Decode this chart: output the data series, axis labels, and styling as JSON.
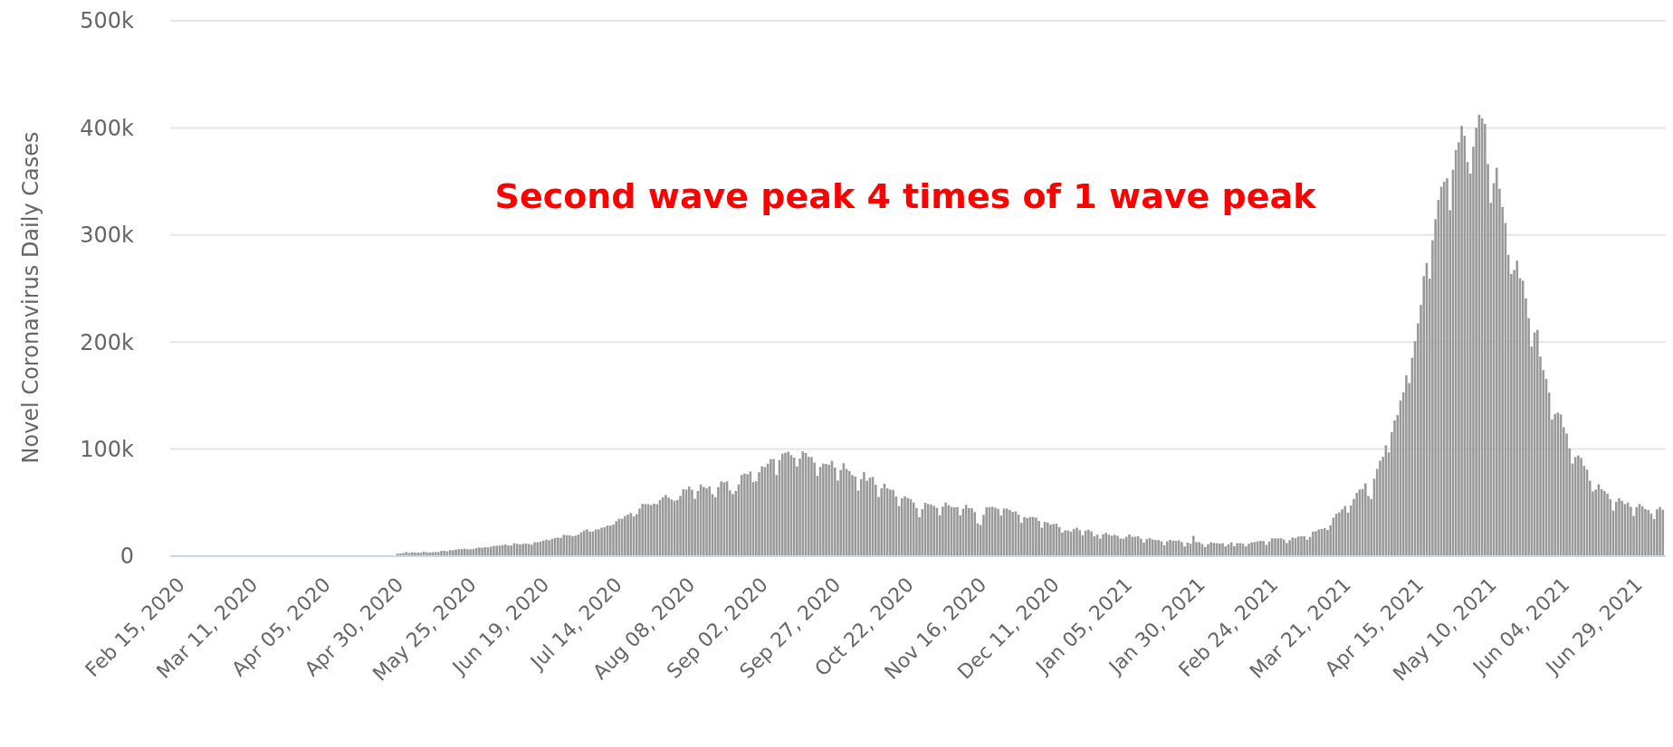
{
  "chart_data": {
    "type": "bar",
    "ylabel": "Novel Coronavirus Daily Cases",
    "annotations": [
      "Second wave peak 4 times of 1 wave peak"
    ],
    "xlim": [
      "2020-02-13",
      "2021-07-10"
    ],
    "xticks": [
      {
        "value": "2020-02-15",
        "label": "Feb 15, 2020"
      },
      {
        "value": "2020-03-11",
        "label": "Mar 11, 2020"
      },
      {
        "value": "2020-04-05",
        "label": "Apr 05, 2020"
      },
      {
        "value": "2020-04-30",
        "label": "Apr 30, 2020"
      },
      {
        "value": "2020-05-25",
        "label": "May 25, 2020"
      },
      {
        "value": "2020-06-19",
        "label": "Jun 19, 2020"
      },
      {
        "value": "2020-07-14",
        "label": "Jul 14, 2020"
      },
      {
        "value": "2020-08-08",
        "label": "Aug 08, 2020"
      },
      {
        "value": "2020-09-02",
        "label": "Sep 02, 2020"
      },
      {
        "value": "2020-09-27",
        "label": "Sep 27, 2020"
      },
      {
        "value": "2020-10-22",
        "label": "Oct 22, 2020"
      },
      {
        "value": "2020-11-16",
        "label": "Nov 16, 2020"
      },
      {
        "value": "2020-12-11",
        "label": "Dec 11, 2020"
      },
      {
        "value": "2021-01-05",
        "label": "Jan 05, 2021"
      },
      {
        "value": "2021-01-30",
        "label": "Jan 30, 2021"
      },
      {
        "value": "2021-02-24",
        "label": "Feb 24, 2021"
      },
      {
        "value": "2021-03-21",
        "label": "Mar 21, 2021"
      },
      {
        "value": "2021-04-15",
        "label": "Apr 15, 2021"
      },
      {
        "value": "2021-05-10",
        "label": "May 10, 2021"
      },
      {
        "value": "2021-06-04",
        "label": "Jun 04, 2021"
      },
      {
        "value": "2021-06-29",
        "label": "Jun 29, 2021"
      }
    ],
    "ylim": [
      0,
      500000
    ],
    "yticks": [
      {
        "value": 0,
        "label": "0"
      },
      {
        "value": 100000,
        "label": "100k"
      },
      {
        "value": 200000,
        "label": "200k"
      },
      {
        "value": 300000,
        "label": "300k"
      },
      {
        "value": 400000,
        "label": "400k"
      },
      {
        "value": 500000,
        "label": "500k"
      }
    ],
    "grid": "y",
    "color": "#999999",
    "x": [
      "2020-05-01",
      "2020-05-02",
      "2020-05-03",
      "2020-05-04",
      "2020-05-05",
      "2020-05-06",
      "2020-05-07",
      "2020-05-08",
      "2020-05-09",
      "2020-05-10",
      "2020-05-11",
      "2020-05-12",
      "2020-05-13",
      "2020-05-14",
      "2020-05-15",
      "2020-05-16",
      "2020-05-17",
      "2020-05-18",
      "2020-05-19",
      "2020-05-20",
      "2020-05-21",
      "2020-05-22",
      "2020-05-23",
      "2020-05-24",
      "2020-05-25",
      "2020-05-26",
      "2020-05-27",
      "2020-05-28",
      "2020-05-29",
      "2020-05-30",
      "2020-05-31",
      "2020-06-01",
      "2020-06-02",
      "2020-06-03",
      "2020-06-04",
      "2020-06-05",
      "2020-06-06",
      "2020-06-07",
      "2020-06-08",
      "2020-06-09",
      "2020-06-10",
      "2020-06-11",
      "2020-06-12",
      "2020-06-13",
      "2020-06-14",
      "2020-06-15",
      "2020-06-16",
      "2020-06-17",
      "2020-06-18",
      "2020-06-19",
      "2020-06-20",
      "2020-06-21",
      "2020-06-22",
      "2020-06-23",
      "2020-06-24",
      "2020-06-25",
      "2020-06-26",
      "2020-06-27",
      "2020-06-28",
      "2020-06-29",
      "2020-06-30",
      "2020-07-01",
      "2020-07-02",
      "2020-07-03",
      "2020-07-04",
      "2020-07-05",
      "2020-07-06",
      "2020-07-07",
      "2020-07-08",
      "2020-07-09",
      "2020-07-10",
      "2020-07-11",
      "2020-07-12",
      "2020-07-13",
      "2020-07-14",
      "2020-07-15",
      "2020-07-16",
      "2020-07-17",
      "2020-07-18",
      "2020-07-19",
      "2020-07-20",
      "2020-07-21",
      "2020-07-22",
      "2020-07-23",
      "2020-07-24",
      "2020-07-25",
      "2020-07-26",
      "2020-07-27",
      "2020-07-28",
      "2020-07-29",
      "2020-07-30",
      "2020-07-31",
      "2020-08-01",
      "2020-08-02",
      "2020-08-03",
      "2020-08-04",
      "2020-08-05",
      "2020-08-06",
      "2020-08-07",
      "2020-08-08",
      "2020-08-09",
      "2020-08-10",
      "2020-08-11",
      "2020-08-12",
      "2020-08-13",
      "2020-08-14",
      "2020-08-15",
      "2020-08-16",
      "2020-08-17",
      "2020-08-18",
      "2020-08-19",
      "2020-08-20",
      "2020-08-21",
      "2020-08-22",
      "2020-08-23",
      "2020-08-24",
      "2020-08-25",
      "2020-08-26",
      "2020-08-27",
      "2020-08-28",
      "2020-08-29",
      "2020-08-30",
      "2020-08-31",
      "2020-09-01",
      "2020-09-02",
      "2020-09-03",
      "2020-09-04",
      "2020-09-05",
      "2020-09-06",
      "2020-09-07",
      "2020-09-08",
      "2020-09-09",
      "2020-09-10",
      "2020-09-11",
      "2020-09-12",
      "2020-09-13",
      "2020-09-14",
      "2020-09-15",
      "2020-09-16",
      "2020-09-17",
      "2020-09-18",
      "2020-09-19",
      "2020-09-20",
      "2020-09-21",
      "2020-09-22",
      "2020-09-23",
      "2020-09-24",
      "2020-09-25",
      "2020-09-26",
      "2020-09-27",
      "2020-09-28",
      "2020-09-29",
      "2020-09-30",
      "2020-10-01",
      "2020-10-02",
      "2020-10-03",
      "2020-10-04",
      "2020-10-05",
      "2020-10-06",
      "2020-10-07",
      "2020-10-08",
      "2020-10-09",
      "2020-10-10",
      "2020-10-11",
      "2020-10-12",
      "2020-10-13",
      "2020-10-14",
      "2020-10-15",
      "2020-10-16",
      "2020-10-17",
      "2020-10-18",
      "2020-10-19",
      "2020-10-20",
      "2020-10-21",
      "2020-10-22",
      "2020-10-23",
      "2020-10-24",
      "2020-10-25",
      "2020-10-26",
      "2020-10-27",
      "2020-10-28",
      "2020-10-29",
      "2020-10-30",
      "2020-10-31",
      "2020-11-01",
      "2020-11-02",
      "2020-11-03",
      "2020-11-04",
      "2020-11-05",
      "2020-11-06",
      "2020-11-07",
      "2020-11-08",
      "2020-11-09",
      "2020-11-10",
      "2020-11-11",
      "2020-11-12",
      "2020-11-13",
      "2020-11-14",
      "2020-11-15",
      "2020-11-16",
      "2020-11-17",
      "2020-11-18",
      "2020-11-19",
      "2020-11-20",
      "2020-11-21",
      "2020-11-22",
      "2020-11-23",
      "2020-11-24",
      "2020-11-25",
      "2020-11-26",
      "2020-11-27",
      "2020-11-28",
      "2020-11-29",
      "2020-11-30",
      "2020-12-01",
      "2020-12-02",
      "2020-12-03",
      "2020-12-04",
      "2020-12-05",
      "2020-12-06",
      "2020-12-07",
      "2020-12-08",
      "2020-12-09",
      "2020-12-10",
      "2020-12-11",
      "2020-12-12",
      "2020-12-13",
      "2020-12-14",
      "2020-12-15",
      "2020-12-16",
      "2020-12-17",
      "2020-12-18",
      "2020-12-19",
      "2020-12-20",
      "2020-12-21",
      "2020-12-22",
      "2020-12-23",
      "2020-12-24",
      "2020-12-25",
      "2020-12-26",
      "2020-12-27",
      "2020-12-28",
      "2020-12-29",
      "2020-12-30",
      "2020-12-31",
      "2021-01-01",
      "2021-01-02",
      "2021-01-03",
      "2021-01-04",
      "2021-01-05",
      "2021-01-06",
      "2021-01-07",
      "2021-01-08",
      "2021-01-09",
      "2021-01-10",
      "2021-01-11",
      "2021-01-12",
      "2021-01-13",
      "2021-01-14",
      "2021-01-15",
      "2021-01-16",
      "2021-01-17",
      "2021-01-18",
      "2021-01-19",
      "2021-01-20",
      "2021-01-21",
      "2021-01-22",
      "2021-01-23",
      "2021-01-24",
      "2021-01-25",
      "2021-01-26",
      "2021-01-27",
      "2021-01-28",
      "2021-01-29",
      "2021-01-30",
      "2021-01-31",
      "2021-02-01",
      "2021-02-02",
      "2021-02-03",
      "2021-02-04",
      "2021-02-05",
      "2021-02-06",
      "2021-02-07",
      "2021-02-08",
      "2021-02-09",
      "2021-02-10",
      "2021-02-11",
      "2021-02-12",
      "2021-02-13",
      "2021-02-14",
      "2021-02-15",
      "2021-02-16",
      "2021-02-17",
      "2021-02-18",
      "2021-02-19",
      "2021-02-20",
      "2021-02-21",
      "2021-02-22",
      "2021-02-23",
      "2021-02-24",
      "2021-02-25",
      "2021-02-26",
      "2021-02-27",
      "2021-02-28",
      "2021-03-01",
      "2021-03-02",
      "2021-03-03",
      "2021-03-04",
      "2021-03-05",
      "2021-03-06",
      "2021-03-07",
      "2021-03-08",
      "2021-03-09",
      "2021-03-10",
      "2021-03-11",
      "2021-03-12",
      "2021-03-13",
      "2021-03-14",
      "2021-03-15",
      "2021-03-16",
      "2021-03-17",
      "2021-03-18",
      "2021-03-19",
      "2021-03-20",
      "2021-03-21",
      "2021-03-22",
      "2021-03-23",
      "2021-03-24",
      "2021-03-25",
      "2021-03-26",
      "2021-03-27",
      "2021-03-28",
      "2021-03-29",
      "2021-03-30",
      "2021-03-31",
      "2021-04-01",
      "2021-04-02",
      "2021-04-03",
      "2021-04-04",
      "2021-04-05",
      "2021-04-06",
      "2021-04-07",
      "2021-04-08",
      "2021-04-09",
      "2021-04-10",
      "2021-04-11",
      "2021-04-12",
      "2021-04-13",
      "2021-04-14",
      "2021-04-15",
      "2021-04-16",
      "2021-04-17",
      "2021-04-18",
      "2021-04-19",
      "2021-04-20",
      "2021-04-21",
      "2021-04-22",
      "2021-04-23",
      "2021-04-24",
      "2021-04-25",
      "2021-04-26",
      "2021-04-27",
      "2021-04-28",
      "2021-04-29",
      "2021-04-30",
      "2021-05-01",
      "2021-05-02",
      "2021-05-03",
      "2021-05-04",
      "2021-05-05",
      "2021-05-06",
      "2021-05-07",
      "2021-05-08",
      "2021-05-09",
      "2021-05-10",
      "2021-05-11",
      "2021-05-12",
      "2021-05-13",
      "2021-05-14",
      "2021-05-15",
      "2021-05-16",
      "2021-05-17",
      "2021-05-18",
      "2021-05-19",
      "2021-05-20",
      "2021-05-21",
      "2021-05-22",
      "2021-05-23",
      "2021-05-24",
      "2021-05-25",
      "2021-05-26",
      "2021-05-27",
      "2021-05-28",
      "2021-05-29",
      "2021-05-30",
      "2021-05-31",
      "2021-06-01",
      "2021-06-02",
      "2021-06-03",
      "2021-06-04",
      "2021-06-05",
      "2021-06-06",
      "2021-06-07",
      "2021-06-08",
      "2021-06-09",
      "2021-06-10",
      "2021-06-11",
      "2021-06-12",
      "2021-06-13",
      "2021-06-14",
      "2021-06-15",
      "2021-06-16",
      "2021-06-17",
      "2021-06-18",
      "2021-06-19",
      "2021-06-20",
      "2021-06-21",
      "2021-06-22",
      "2021-06-23",
      "2021-06-24",
      "2021-06-25",
      "2021-06-26",
      "2021-06-27",
      "2021-06-28",
      "2021-06-29",
      "2021-06-30",
      "2021-07-01",
      "2021-07-02",
      "2021-07-03",
      "2021-07-04",
      "2021-07-05",
      "2021-07-06",
      "2021-07-07",
      "2021-07-08",
      "2021-07-09"
    ],
    "values": [
      2400,
      2600,
      2800,
      3900,
      3000,
      3600,
      3400,
      3300,
      3300,
      4200,
      3600,
      3500,
      3700,
      3900,
      3900,
      4900,
      5000,
      4600,
      5600,
      5600,
      6100,
      6600,
      6700,
      7000,
      6500,
      6400,
      6600,
      7500,
      8100,
      7900,
      8400,
      8200,
      8900,
      9600,
      9800,
      9900,
      10400,
      10900,
      9900,
      10000,
      12000,
      11500,
      11000,
      11500,
      11900,
      11500,
      10700,
      13000,
      12900,
      13600,
      14500,
      15400,
      14800,
      16000,
      16900,
      17300,
      17000,
      19900,
      19700,
      19500,
      18700,
      19100,
      20100,
      22300,
      24000,
      25100,
      22900,
      23100,
      24900,
      25000,
      26500,
      27100,
      28600,
      28500,
      29400,
      32700,
      35000,
      34900,
      37400,
      38900,
      40400,
      37100,
      39200,
      44500,
      48900,
      48600,
      48600,
      47700,
      49000,
      48500,
      52500,
      55100,
      57100,
      54700,
      52900,
      51700,
      52500,
      56300,
      62500,
      62200,
      65000,
      62100,
      53600,
      60900,
      66900,
      64600,
      63500,
      65000,
      57900,
      55100,
      64500,
      69700,
      68900,
      69900,
      61400,
      58100,
      60900,
      67100,
      75800,
      77200,
      76500,
      79000,
      69200,
      69900,
      78400,
      83900,
      83300,
      86400,
      90600,
      90800,
      75800,
      89700,
      95700,
      96600,
      97600,
      94400,
      92100,
      83800,
      91100,
      97900,
      96400,
      92800,
      92600,
      87400,
      75000,
      83300,
      86500,
      86100,
      85400,
      89000,
      82800,
      70600,
      80500,
      86800,
      81500,
      79500,
      75800,
      74400,
      61300,
      72000,
      78500,
      70500,
      73300,
      74000,
      66700,
      55300,
      63500,
      67700,
      63400,
      62200,
      61900,
      55700,
      46800,
      54000,
      55800,
      54400,
      53400,
      50100,
      45100,
      36400,
      43900,
      49900,
      48600,
      48300,
      46900,
      45200,
      38300,
      46300,
      50200,
      47600,
      46000,
      45700,
      45900,
      38100,
      44300,
      47900,
      44900,
      44700,
      41100,
      30500,
      29100,
      38600,
      45600,
      45900,
      46200,
      45200,
      44100,
      37900,
      44400,
      44500,
      43100,
      41300,
      41800,
      38800,
      31100,
      36600,
      35600,
      36600,
      36600,
      36000,
      32900,
      26500,
      32100,
      31500,
      29400,
      30000,
      30300,
      27100,
      22100,
      24000,
      24000,
      22900,
      25200,
      26600,
      24300,
      19600,
      23900,
      24700,
      23100,
      18700,
      20000,
      16400,
      20500,
      21800,
      20000,
      19100,
      20000,
      19000,
      16500,
      16400,
      18100,
      20300,
      18100,
      18200,
      18600,
      16300,
      12600,
      15900,
      16900,
      15600,
      15100,
      15100,
      13800,
      10100,
      13800,
      15200,
      14500,
      14300,
      14800,
      13200,
      9100,
      12700,
      11700,
      18900,
      13100,
      13100,
      11400,
      8600,
      11000,
      12900,
      12400,
      12100,
      11800,
      12100,
      9100,
      11000,
      12900,
      9300,
      12100,
      12200,
      11600,
      9100,
      11600,
      12900,
      13200,
      13900,
      14300,
      14200,
      10600,
      13700,
      16700,
      16600,
      16500,
      16800,
      15500,
      12300,
      14900,
      17400,
      16800,
      18300,
      18700,
      18600,
      15400,
      17900,
      22900,
      23300,
      24900,
      25300,
      26300,
      24500,
      28900,
      35900,
      39700,
      40900,
      43800,
      46900,
      40700,
      47300,
      53500,
      59100,
      62300,
      62700,
      68000,
      56200,
      53500,
      72300,
      81500,
      89100,
      92900,
      103600,
      96900,
      115700,
      126800,
      131900,
      145400,
      152900,
      168900,
      161700,
      185300,
      200700,
      217400,
      234700,
      261500,
      273800,
      259200,
      295000,
      314800,
      332700,
      345100,
      349700,
      352900,
      323100,
      360900,
      379300,
      386500,
      401900,
      392500,
      368100,
      357200,
      382300,
      400000,
      412300,
      409000,
      403700,
      366200,
      329900,
      348400,
      362700,
      343100,
      326100,
      311200,
      281400,
      263500,
      267300,
      276100,
      259600,
      257300,
      240800,
      222300,
      195800,
      208900,
      211300,
      186400,
      173800,
      165600,
      152700,
      127500,
      132800,
      134100,
      132400,
      120500,
      114500,
      100600,
      86500,
      92600,
      94100,
      91700,
      84300,
      80800,
      70400,
      60500,
      62200,
      67200,
      62500,
      60800,
      58400,
      53300,
      42600,
      50800,
      54100,
      51700,
      48700,
      50000,
      46100,
      37600,
      45900,
      48800,
      46600,
      44100,
      43100,
      39800,
      34700,
      43700,
      45900,
      43400
    ]
  }
}
